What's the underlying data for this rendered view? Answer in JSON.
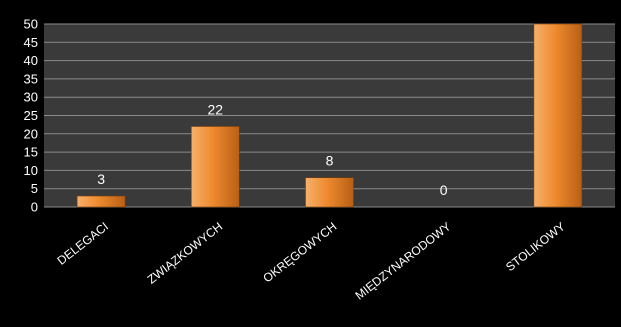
{
  "chart_data": {
    "type": "bar",
    "categories": [
      "DELEGACI",
      "ZWIĄZKOWYCH",
      "OKRĘGOWYCH",
      "MIĘDZYNARODOWY",
      "STOLIKOWY"
    ],
    "values": [
      3,
      22,
      8,
      0,
      50
    ],
    "data_labels": [
      "3",
      "22",
      "8",
      "0",
      ""
    ],
    "title": "",
    "xlabel": "",
    "ylabel": "",
    "ylim": [
      0,
      50
    ],
    "yticks": [
      "0",
      "5",
      "10",
      "15",
      "20",
      "25",
      "30",
      "35",
      "40",
      "45",
      "50"
    ],
    "grid": true,
    "legend": "none",
    "colors": {
      "background": "#000000",
      "plot_area": "#3a3a3a",
      "gridline": "#8a8a8a",
      "bar_light": "#f6b06a",
      "bar_mid": "#ee8a2e",
      "bar_dark": "#b85f16",
      "text": "#ffffff"
    }
  }
}
